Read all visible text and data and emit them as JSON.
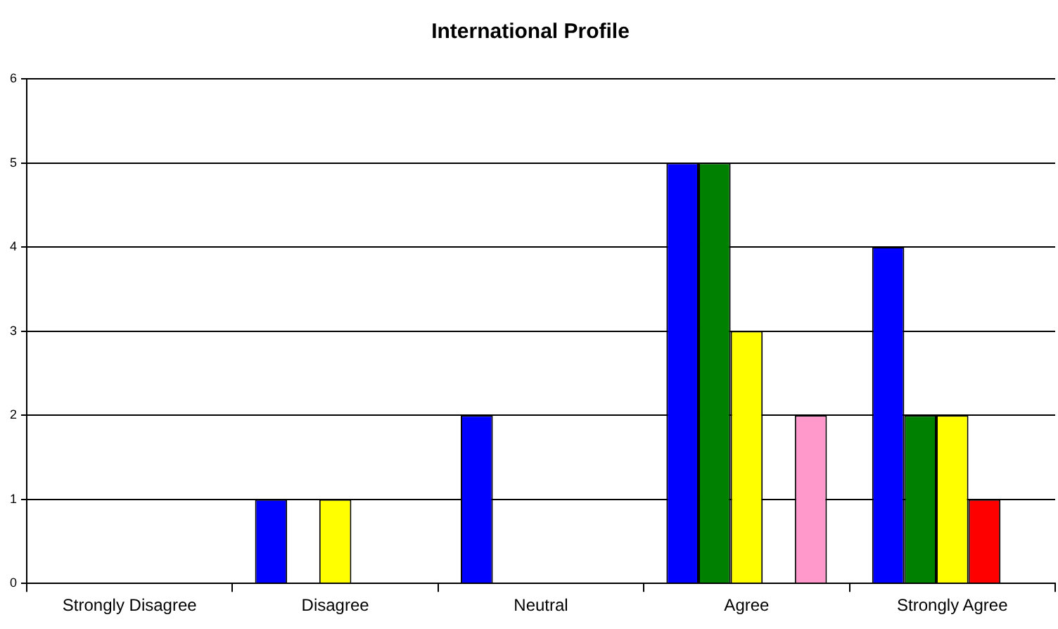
{
  "chart_data": {
    "type": "bar",
    "title": "International Profile",
    "categories": [
      "Strongly Disagree",
      "Disagree",
      "Neutral",
      "Agree",
      "Strongly Agree"
    ],
    "series": [
      {
        "color": "#0000ff",
        "values": [
          0,
          1,
          2,
          5,
          4
        ]
      },
      {
        "color": "#008000",
        "values": [
          0,
          0,
          0,
          5,
          2
        ]
      },
      {
        "color": "#ffff00",
        "values": [
          0,
          1,
          0,
          3,
          2
        ]
      },
      {
        "color": "#ff0000",
        "values": [
          0,
          0,
          0,
          0,
          1
        ]
      },
      {
        "color": "#ff99cc",
        "values": [
          0,
          0,
          0,
          2,
          0
        ]
      }
    ],
    "ylim": [
      0,
      6
    ],
    "yticks": [
      0,
      1,
      2,
      3,
      4,
      5,
      6
    ],
    "grid": "y",
    "legend": false
  }
}
